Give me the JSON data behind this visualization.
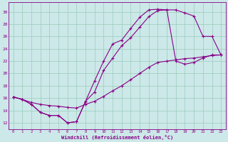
{
  "bg_color": "#cce8e8",
  "grid_color": "#99ccbb",
  "line_color": "#880088",
  "xlabel": "Windchill (Refroidissement éolien,°C)",
  "xlim": [
    -0.5,
    23.5
  ],
  "ylim": [
    11.0,
    31.5
  ],
  "xticks": [
    0,
    1,
    2,
    3,
    4,
    5,
    6,
    7,
    8,
    9,
    10,
    11,
    12,
    13,
    14,
    15,
    16,
    17,
    18,
    19,
    20,
    21,
    22,
    23
  ],
  "yticks": [
    12,
    14,
    16,
    18,
    20,
    22,
    24,
    26,
    28,
    30
  ],
  "curve1_x": [
    0,
    1,
    2,
    3,
    4,
    5,
    6,
    7,
    8,
    9,
    10,
    11,
    12,
    13,
    14,
    15,
    16,
    17,
    18,
    19,
    20,
    21,
    22,
    23
  ],
  "curve1_y": [
    16.2,
    15.8,
    15.0,
    13.7,
    13.2,
    13.2,
    12.0,
    12.2,
    15.5,
    18.8,
    22.0,
    24.8,
    25.4,
    27.3,
    29.1,
    30.3,
    30.4,
    30.3,
    30.3,
    29.8,
    29.3,
    26.0,
    26.0,
    23.0
  ],
  "curve2_x": [
    0,
    1,
    2,
    3,
    4,
    5,
    6,
    7,
    8,
    9,
    10,
    11,
    12,
    13,
    14,
    15,
    16,
    17,
    18,
    19,
    20,
    21,
    22,
    23
  ],
  "curve2_y": [
    16.2,
    15.8,
    15.0,
    13.7,
    13.2,
    13.2,
    12.0,
    12.2,
    15.5,
    17.0,
    20.5,
    22.5,
    24.5,
    25.8,
    27.5,
    29.2,
    30.2,
    30.3,
    22.0,
    21.5,
    21.8,
    22.5,
    23.0,
    23.0
  ],
  "curve3_x": [
    0,
    1,
    2,
    3,
    4,
    5,
    6,
    7,
    8,
    9,
    10,
    11,
    12,
    13,
    14,
    15,
    16,
    17,
    18,
    19,
    20,
    21,
    22,
    23
  ],
  "curve3_y": [
    16.2,
    15.8,
    15.3,
    15.0,
    14.8,
    14.7,
    14.5,
    14.4,
    15.0,
    15.5,
    16.3,
    17.2,
    18.0,
    19.0,
    20.0,
    21.0,
    21.8,
    22.0,
    22.2,
    22.4,
    22.5,
    22.7,
    22.9,
    23.0
  ]
}
